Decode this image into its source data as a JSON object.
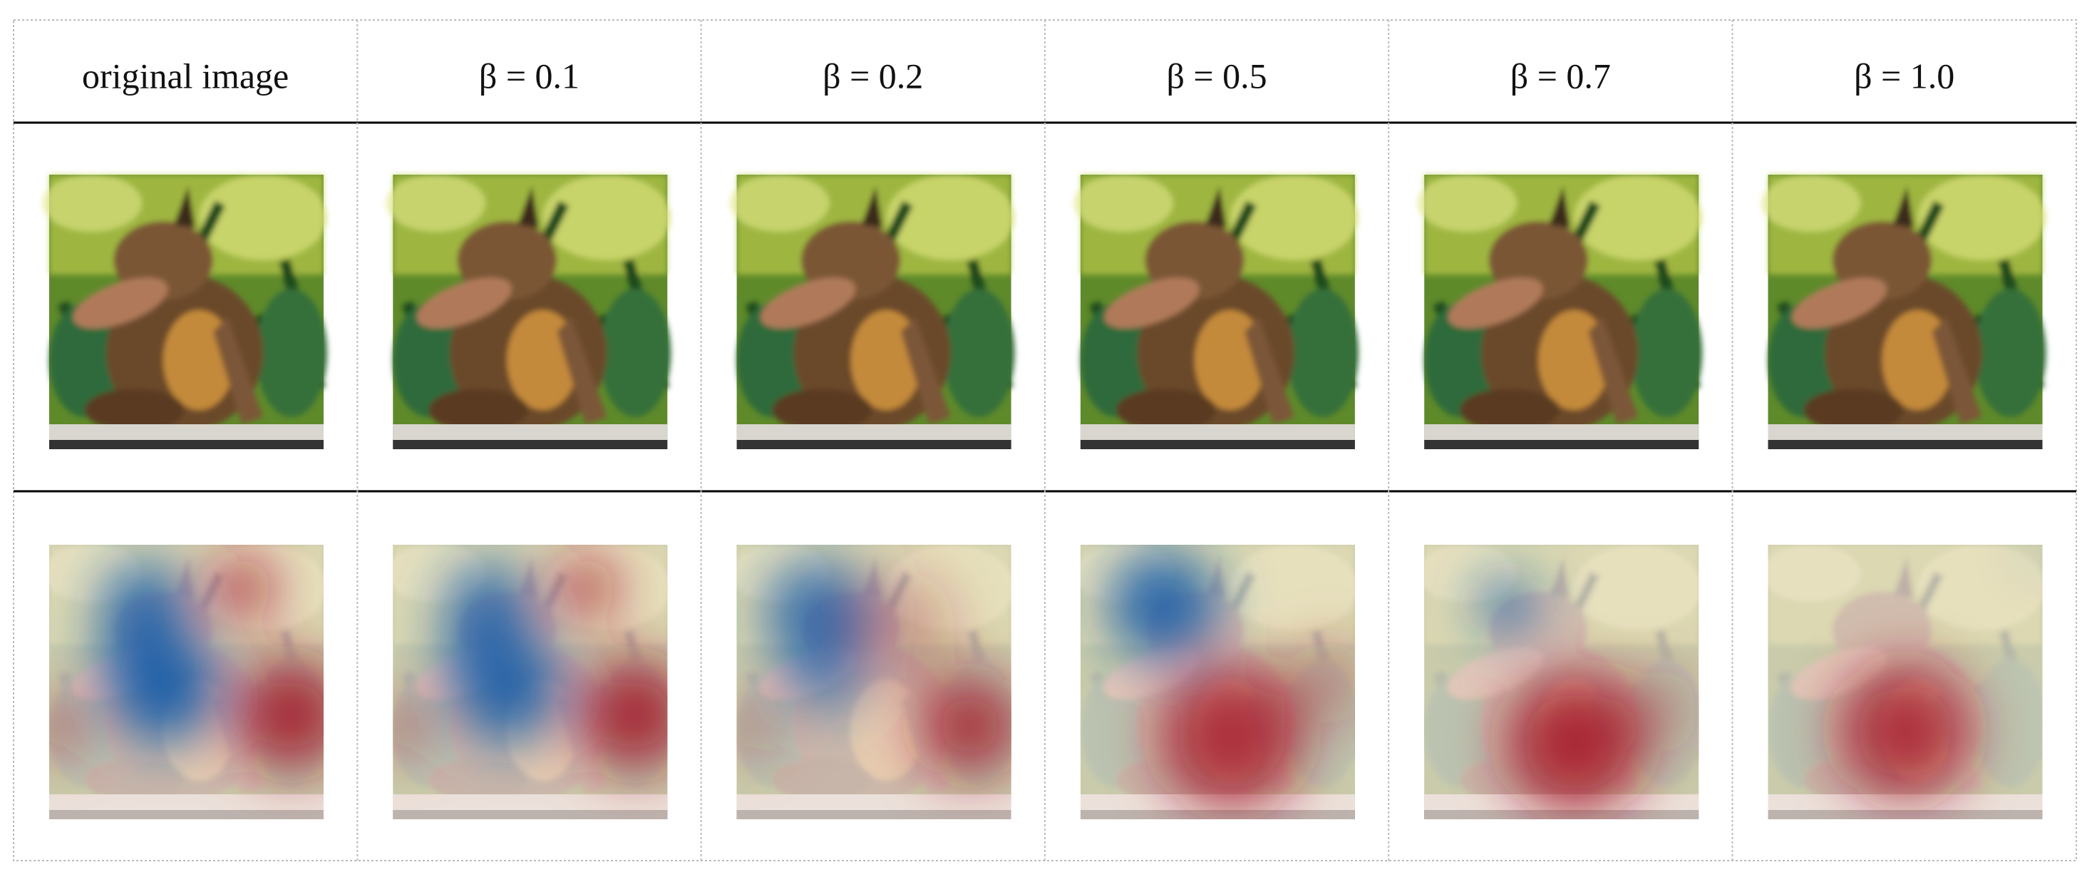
{
  "table": {
    "header": [
      "original image",
      "β = 0.1",
      "β = 0.2",
      "β = 0.5",
      "β = 0.7",
      "β = 1.0"
    ]
  }
}
